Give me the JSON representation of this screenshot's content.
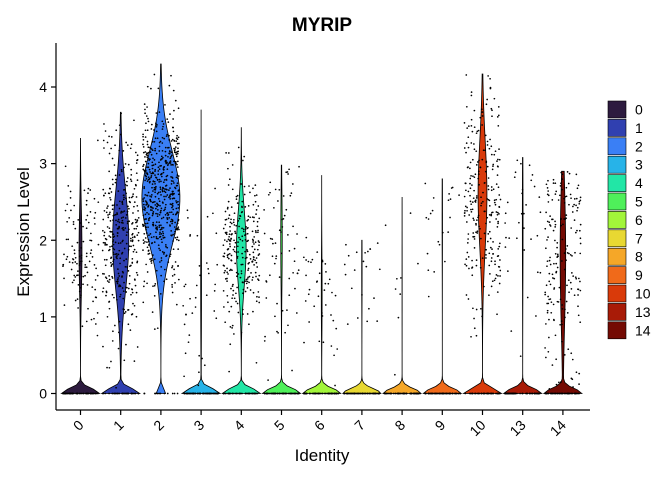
{
  "chart_data": {
    "type": "violin",
    "title": "MYRIP",
    "xlabel": "Identity",
    "ylabel": "Expression Level",
    "ylim": [
      0,
      4.4
    ],
    "yticks": [
      0,
      1,
      2,
      3,
      4
    ],
    "legend_position": "right",
    "grid": false,
    "categories": [
      "0",
      "1",
      "2",
      "3",
      "4",
      "5",
      "6",
      "7",
      "8",
      "9",
      "10",
      "13",
      "14"
    ],
    "colors": [
      "#2d1b3f",
      "#3040b0",
      "#3a7ff5",
      "#27b3e8",
      "#22e6a6",
      "#4ff05a",
      "#a2f53a",
      "#e8d832",
      "#f5a728",
      "#f06a1a",
      "#d93a0a",
      "#a81b07",
      "#740a03"
    ],
    "max_values": [
      3.33,
      3.67,
      4.3,
      3.7,
      3.47,
      2.98,
      2.85,
      2.0,
      2.56,
      2.8,
      4.17,
      3.08,
      2.9
    ],
    "nonzero_fraction": [
      0.18,
      0.55,
      0.92,
      0.06,
      0.42,
      0.1,
      0.06,
      0.03,
      0.01,
      0.03,
      0.4,
      0.05,
      0.3
    ],
    "nonzero_mean": [
      1.85,
      2.0,
      2.55,
      1.4,
      1.9,
      2.0,
      1.3,
      1.6,
      1.5,
      2.3,
      2.6,
      2.2,
      1.8
    ],
    "nonzero_sd": [
      0.55,
      0.65,
      0.6,
      0.8,
      0.5,
      0.6,
      0.5,
      0.5,
      0.7,
      0.6,
      0.7,
      0.8,
      0.9
    ]
  }
}
